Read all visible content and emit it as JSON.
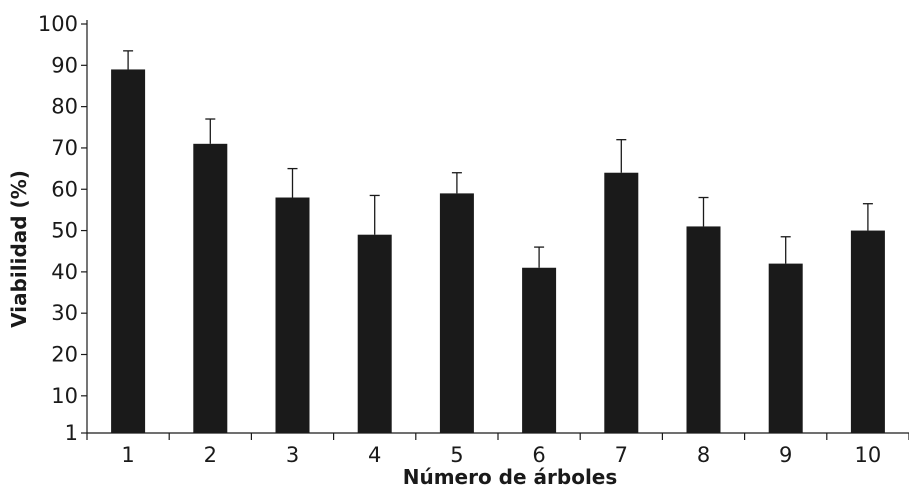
{
  "chart_data": {
    "type": "bar",
    "xlabel": "Número de árboles",
    "ylabel": "Viabilidad (%)",
    "ylim": [
      1,
      100
    ],
    "yticks": [
      1,
      10,
      20,
      30,
      40,
      50,
      60,
      70,
      80,
      90,
      100
    ],
    "categories": [
      "1",
      "2",
      "3",
      "4",
      "5",
      "6",
      "7",
      "8",
      "9",
      "10"
    ],
    "values": [
      89,
      71,
      58,
      49,
      59,
      41,
      64,
      51,
      42,
      50
    ],
    "errors": [
      4.5,
      6,
      7,
      9.5,
      5,
      5,
      8,
      7,
      6.5,
      6.5
    ],
    "bar_color": "#1a1a1a",
    "grid": false
  }
}
